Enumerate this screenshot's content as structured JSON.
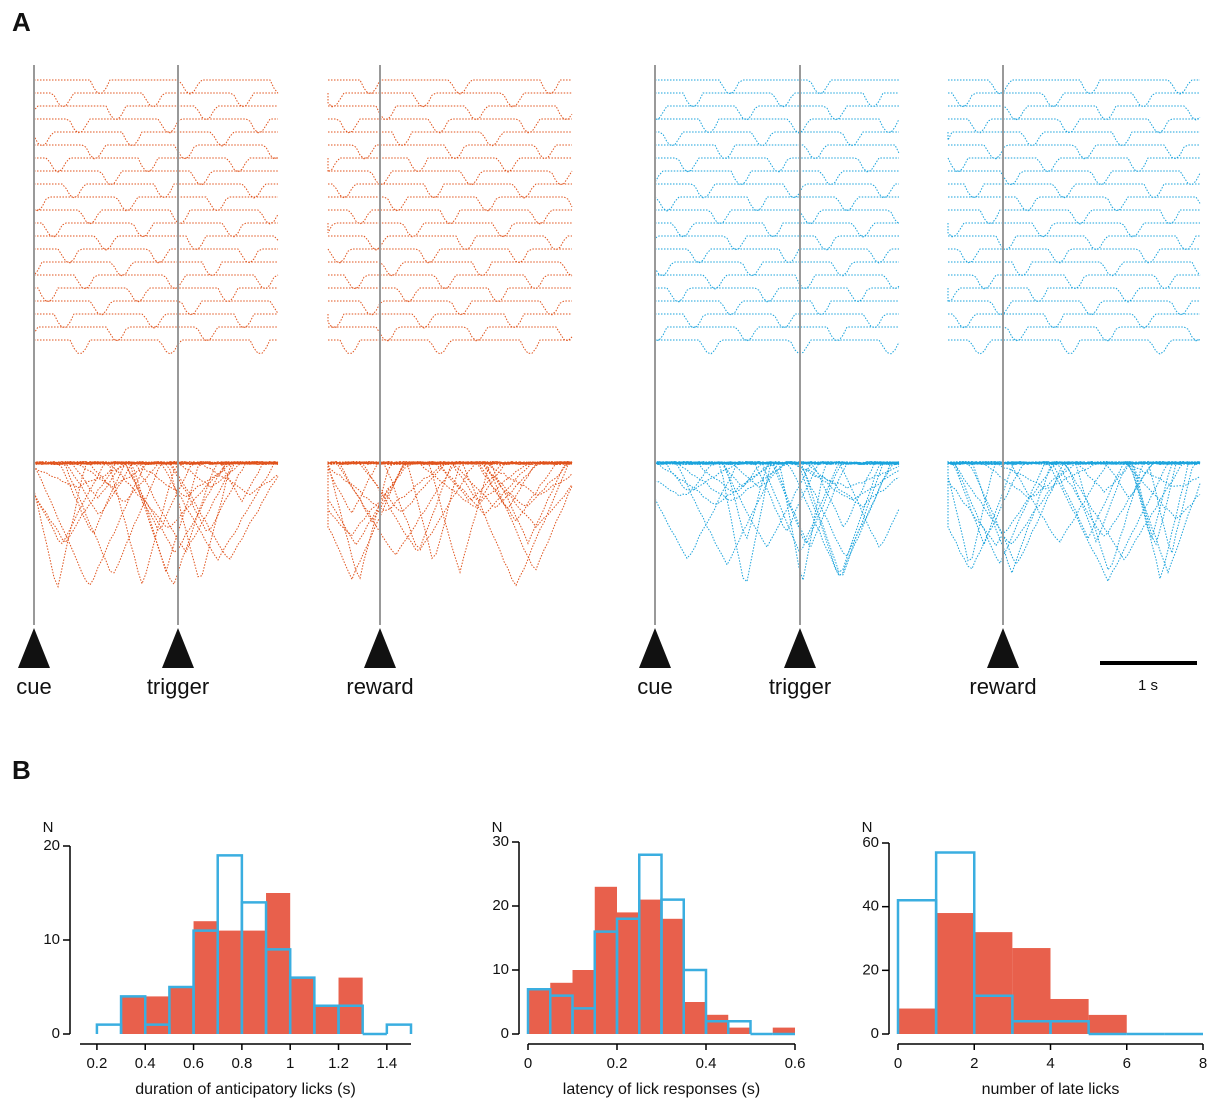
{
  "panel_a": {
    "label": "A",
    "events": [
      "cue",
      "trigger",
      "reward"
    ],
    "scale_bar": "1 s"
  },
  "panel_b": {
    "label": "B"
  },
  "chart_data": [
    {
      "type": "histogram",
      "ylabel": "N",
      "xlabel": "duration of anticipatory licks (s)",
      "bins": [
        0.2,
        0.3,
        0.4,
        0.5,
        0.6,
        0.7,
        0.8,
        0.9,
        1.0,
        1.1,
        1.2,
        1.3,
        1.4,
        1.5
      ],
      "series": [
        {
          "color": "#e8604c",
          "filled": true,
          "values": [
            0,
            4,
            4,
            5,
            12,
            11,
            11,
            15,
            6,
            3,
            6,
            0,
            0
          ]
        },
        {
          "color": "#3aaee0",
          "filled": false,
          "values": [
            1,
            4,
            1,
            5,
            11,
            19,
            14,
            9,
            6,
            3,
            3,
            0,
            1
          ]
        }
      ],
      "xlim": [
        0.13,
        1.5
      ],
      "xticks": [
        0.2,
        0.4,
        0.6,
        0.8,
        1,
        1.2,
        1.4
      ],
      "ylim": [
        0,
        20
      ],
      "yticks": [
        0,
        10,
        20
      ]
    },
    {
      "type": "histogram",
      "ylabel": "N",
      "xlabel": "latency of lick responses (s)",
      "bins": [
        0,
        0.05,
        0.1,
        0.15,
        0.2,
        0.25,
        0.3,
        0.35,
        0.4,
        0.45,
        0.5,
        0.55,
        0.6
      ],
      "series": [
        {
          "color": "#e8604c",
          "filled": true,
          "values": [
            7,
            8,
            10,
            23,
            19,
            21,
            18,
            5,
            3,
            1,
            0,
            1
          ]
        },
        {
          "color": "#3aaee0",
          "filled": false,
          "values": [
            7,
            6,
            4,
            16,
            18,
            28,
            21,
            10,
            2,
            2,
            0,
            0
          ]
        }
      ],
      "xlim": [
        0,
        0.6
      ],
      "xticks": [
        0,
        0.2,
        0.4,
        0.6
      ],
      "ylim": [
        0,
        30
      ],
      "yticks": [
        0,
        10,
        20,
        30
      ]
    },
    {
      "type": "histogram",
      "ylabel": "N",
      "xlabel": "number of late licks",
      "bins": [
        0,
        1,
        2,
        3,
        4,
        5,
        6,
        7,
        8
      ],
      "series": [
        {
          "color": "#e8604c",
          "filled": true,
          "values": [
            8,
            38,
            32,
            27,
            11,
            6,
            0,
            0
          ]
        },
        {
          "color": "#3aaee0",
          "filled": false,
          "values": [
            42,
            57,
            12,
            4,
            4,
            0,
            0,
            0
          ]
        }
      ],
      "xlim": [
        0,
        8
      ],
      "xticks": [
        0,
        2,
        4,
        6,
        8
      ],
      "ylim": [
        0,
        60
      ],
      "yticks": [
        0,
        20,
        40,
        60
      ]
    }
  ]
}
